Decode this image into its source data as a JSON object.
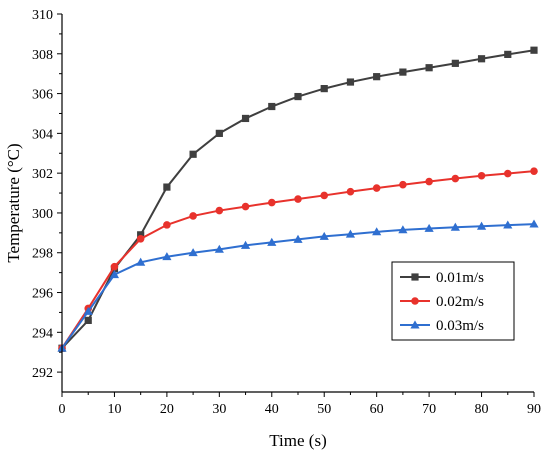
{
  "chart_data": {
    "type": "line",
    "xlabel": "Time (s)",
    "ylabel": "Temperature (°C)",
    "xlim": [
      0,
      90
    ],
    "ylim": [
      291,
      310
    ],
    "xticks": [
      0,
      10,
      20,
      30,
      40,
      50,
      60,
      70,
      80,
      90
    ],
    "yticks": [
      292,
      294,
      296,
      298,
      300,
      302,
      304,
      306,
      308,
      310
    ],
    "grid": false,
    "legend_position": "lower-right",
    "x": [
      0,
      5,
      10,
      15,
      20,
      25,
      30,
      35,
      40,
      45,
      50,
      55,
      60,
      65,
      70,
      75,
      80,
      85,
      90
    ],
    "series": [
      {
        "name": "0.01m/s",
        "color": "#3f3f3f",
        "marker": "square",
        "values": [
          293.2,
          294.6,
          297.2,
          298.9,
          301.3,
          302.95,
          304.0,
          304.75,
          305.35,
          305.85,
          306.25,
          306.58,
          306.85,
          307.08,
          307.3,
          307.52,
          307.75,
          307.97,
          308.18
        ]
      },
      {
        "name": "0.02m/s",
        "color": "#e8322c",
        "marker": "circle",
        "values": [
          293.2,
          295.2,
          297.3,
          298.7,
          299.4,
          299.85,
          300.12,
          300.32,
          300.52,
          300.7,
          300.88,
          301.07,
          301.25,
          301.42,
          301.58,
          301.73,
          301.87,
          301.98,
          302.1
        ]
      },
      {
        "name": "0.03m/s",
        "color": "#2f6fd0",
        "marker": "triangle",
        "values": [
          293.2,
          295.05,
          296.9,
          297.52,
          297.8,
          298.0,
          298.17,
          298.37,
          298.52,
          298.67,
          298.82,
          298.93,
          299.05,
          299.15,
          299.22,
          299.28,
          299.33,
          299.39,
          299.44
        ]
      }
    ]
  }
}
